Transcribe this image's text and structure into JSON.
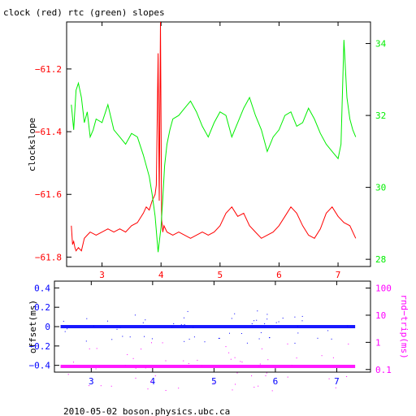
{
  "header": {
    "title": "clock (red) rtc (green) slopes"
  },
  "footer": {
    "text": "2010-05-02 boson.physics.ubc.ca"
  },
  "colors": {
    "red": "#ff0000",
    "green": "#00ee00",
    "blue": "#0000ff",
    "magenta": "#ff00ff",
    "axis": "#000000"
  },
  "chart_data": [
    {
      "type": "line",
      "title": "clock (red) rtc (green) slopes",
      "ylabel": "clockslope",
      "xlim": [
        2.4,
        7.55
      ],
      "ylim": [
        -61.83,
        -61.05
      ],
      "y2lim": [
        27.8,
        34.6
      ],
      "xticks": [
        3,
        4,
        5,
        6,
        7
      ],
      "yticks": [
        -61.8,
        -61.6,
        -61.4,
        -61.2
      ],
      "ytick_labels": [
        "−61.8",
        "−61.6",
        "−61.4",
        "−61.2"
      ],
      "y2ticks": [
        28,
        30,
        32,
        34
      ],
      "series": [
        {
          "name": "clock",
          "axis": "left",
          "color": "#ff0000",
          "x": [
            2.48,
            2.5,
            2.52,
            2.54,
            2.56,
            2.6,
            2.65,
            2.7,
            2.75,
            2.8,
            2.9,
            3.0,
            3.1,
            3.2,
            3.3,
            3.4,
            3.5,
            3.6,
            3.7,
            3.75,
            3.8,
            3.85,
            3.9,
            3.92,
            3.95,
            3.97,
            3.99,
            4.01,
            4.03,
            4.05,
            4.1,
            4.2,
            4.3,
            4.5,
            4.7,
            4.8,
            4.9,
            5.0,
            5.1,
            5.2,
            5.3,
            5.4,
            5.5,
            5.6,
            5.7,
            5.8,
            5.9,
            6.0,
            6.1,
            6.2,
            6.3,
            6.4,
            6.5,
            6.6,
            6.7,
            6.8,
            6.9,
            7.0,
            7.1,
            7.2,
            7.3
          ],
          "y": [
            -61.7,
            -61.76,
            -61.75,
            -61.77,
            -61.78,
            -61.77,
            -61.78,
            -61.74,
            -61.73,
            -61.72,
            -61.73,
            -61.72,
            -61.71,
            -61.72,
            -61.71,
            -61.72,
            -61.7,
            -61.69,
            -61.66,
            -61.64,
            -61.65,
            -61.62,
            -61.6,
            -61.57,
            -61.15,
            -61.62,
            -61.05,
            -61.68,
            -61.72,
            -61.7,
            -61.72,
            -61.73,
            -61.72,
            -61.74,
            -61.72,
            -61.73,
            -61.72,
            -61.7,
            -61.66,
            -61.64,
            -61.67,
            -61.66,
            -61.7,
            -61.72,
            -61.74,
            -61.73,
            -61.72,
            -61.7,
            -61.67,
            -61.64,
            -61.66,
            -61.7,
            -61.73,
            -61.74,
            -61.71,
            -61.66,
            -61.64,
            -61.67,
            -61.69,
            -61.7,
            -61.74
          ]
        },
        {
          "name": "rtc",
          "axis": "right",
          "color": "#00ee00",
          "x": [
            2.48,
            2.52,
            2.56,
            2.6,
            2.65,
            2.7,
            2.75,
            2.8,
            2.85,
            2.9,
            3.0,
            3.1,
            3.2,
            3.3,
            3.4,
            3.5,
            3.6,
            3.7,
            3.8,
            3.85,
            3.9,
            3.95,
            4.0,
            4.03,
            4.06,
            4.1,
            4.15,
            4.2,
            4.3,
            4.4,
            4.5,
            4.6,
            4.7,
            4.8,
            4.9,
            5.0,
            5.1,
            5.2,
            5.3,
            5.4,
            5.5,
            5.6,
            5.7,
            5.8,
            5.9,
            6.0,
            6.1,
            6.2,
            6.3,
            6.4,
            6.5,
            6.6,
            6.7,
            6.8,
            6.9,
            7.0,
            7.05,
            7.1,
            7.15,
            7.2,
            7.25,
            7.3
          ],
          "y": [
            32.3,
            31.6,
            32.7,
            32.9,
            32.5,
            31.8,
            32.1,
            31.4,
            31.6,
            31.9,
            31.8,
            32.3,
            31.6,
            31.4,
            31.2,
            31.5,
            31.4,
            30.9,
            30.3,
            29.8,
            29.2,
            28.2,
            28.9,
            29.7,
            30.6,
            31.2,
            31.6,
            31.9,
            32.0,
            32.2,
            32.4,
            32.1,
            31.7,
            31.4,
            31.8,
            32.1,
            32.0,
            31.4,
            31.8,
            32.2,
            32.5,
            32.0,
            31.6,
            31.0,
            31.4,
            31.6,
            32.0,
            32.1,
            31.7,
            31.8,
            32.2,
            31.9,
            31.5,
            31.2,
            31.0,
            30.8,
            31.2,
            34.1,
            32.5,
            31.9,
            31.6,
            31.4
          ]
        }
      ]
    },
    {
      "type": "scatter",
      "xlabel": "",
      "ylabel": "offset(ms)",
      "y2label": "rnd−trip(ms)",
      "xlim": [
        2.4,
        7.55
      ],
      "ylim": [
        -0.47,
        0.47
      ],
      "y2lim": [
        0.08,
        180
      ],
      "y2scale": "log",
      "xticks": [
        3,
        4,
        5,
        6,
        7
      ],
      "yticks": [
        -0.4,
        -0.2,
        0,
        0.2,
        0.4
      ],
      "ytick_labels": [
        "−0.4",
        "−0.2",
        "0",
        "0.2",
        "0.4"
      ],
      "y2ticks": [
        0.1,
        1,
        10,
        100
      ],
      "series": [
        {
          "name": "offset",
          "axis": "left",
          "color": "#0000ff",
          "x_range": [
            2.5,
            7.3
          ],
          "y_level": 0.0
        },
        {
          "name": "rnd-trip",
          "axis": "right",
          "color": "#ff00ff",
          "x_range": [
            2.5,
            7.3
          ],
          "y_level": 0.13
        }
      ]
    }
  ]
}
